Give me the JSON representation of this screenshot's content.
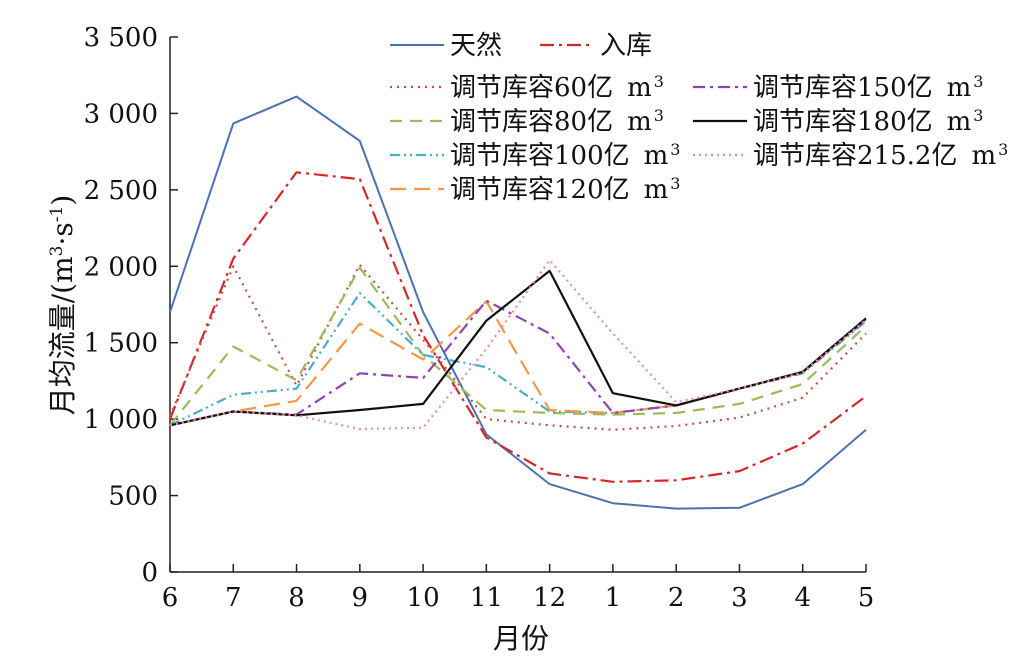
{
  "chart_data": {
    "type": "line",
    "title": "",
    "xlabel": "月份",
    "ylabel": "月均流量/(m³·s⁻¹)",
    "ylabel_parts": {
      "prefix": "月均流量/(m",
      "sup1": "3",
      "mid": "·s",
      "sup2": "-1",
      "suffix": ")"
    },
    "legend_unit": {
      "base": "m",
      "sup": "3"
    },
    "categories": [
      "6",
      "7",
      "8",
      "9",
      "10",
      "11",
      "12",
      "1",
      "2",
      "3",
      "4",
      "5"
    ],
    "ylim": [
      0,
      3500
    ],
    "y_ticks": [
      0,
      500,
      1000,
      1500,
      2000,
      2500,
      3000,
      3500
    ],
    "y_tick_labels": [
      "0",
      "500",
      "1 000",
      "1 500",
      "2 000",
      "2 500",
      "3 000",
      "3 500"
    ],
    "grid": false,
    "legend_position": "top-right",
    "series": [
      {
        "name": "天然",
        "unit": false,
        "color": "#4a72b0",
        "dash": "",
        "width": 2,
        "values": [
          1700,
          2935,
          3110,
          2820,
          1700,
          900,
          575,
          450,
          415,
          420,
          575,
          930
        ]
      },
      {
        "name": "入库",
        "unit": false,
        "color": "#d62728",
        "dash": "14,5,3,5",
        "width": 2.2,
        "values": [
          1000,
          2050,
          2615,
          2570,
          1550,
          880,
          645,
          590,
          600,
          660,
          840,
          1150
        ]
      },
      {
        "name": "调节库容60亿",
        "unit": true,
        "color": "#c0504d",
        "dash": "2,5",
        "width": 2.2,
        "values": [
          1020,
          2000,
          1220,
          2010,
          1520,
          1000,
          960,
          930,
          955,
          1010,
          1140,
          1560
        ]
      },
      {
        "name": "调节库容80亿",
        "unit": true,
        "color": "#9bbb59",
        "dash": "12,8",
        "width": 2.2,
        "values": [
          960,
          1475,
          1255,
          1990,
          1420,
          1060,
          1040,
          1030,
          1040,
          1100,
          1230,
          1610
        ]
      },
      {
        "name": "调节库容100亿",
        "unit": true,
        "color": "#4bacc6",
        "dash": "10,4,2,4,2,4",
        "width": 2.2,
        "values": [
          960,
          1160,
          1200,
          1825,
          1420,
          1340,
          1050,
          1040,
          1090,
          1200,
          1300,
          1640
        ]
      },
      {
        "name": "调节库容120亿",
        "unit": true,
        "color": "#f79646",
        "dash": "16,8",
        "width": 2.2,
        "values": [
          960,
          1050,
          1120,
          1625,
          1390,
          1770,
          1060,
          1040,
          1090,
          1200,
          1305,
          1650
        ]
      },
      {
        "name": "调节库容150亿",
        "unit": true,
        "color": "#8e44ad",
        "dash": "12,5,3,5",
        "width": 2.2,
        "values": [
          960,
          1050,
          1030,
          1300,
          1270,
          1775,
          1560,
          1040,
          1090,
          1200,
          1305,
          1650
        ]
      },
      {
        "name": "调节库容180亿",
        "unit": true,
        "color": "#111111",
        "dash": "",
        "width": 2.2,
        "values": [
          960,
          1050,
          1025,
          1060,
          1100,
          1645,
          1970,
          1170,
          1090,
          1200,
          1310,
          1660
        ]
      },
      {
        "name": "调节库容215.2亿",
        "unit": true,
        "color": "#e8909c",
        "dash": "2,4",
        "width": 2.2,
        "values": [
          960,
          1050,
          1025,
          935,
          945,
          1460,
          2040,
          1560,
          1110,
          1200,
          1305,
          1650
        ]
      }
    ]
  }
}
